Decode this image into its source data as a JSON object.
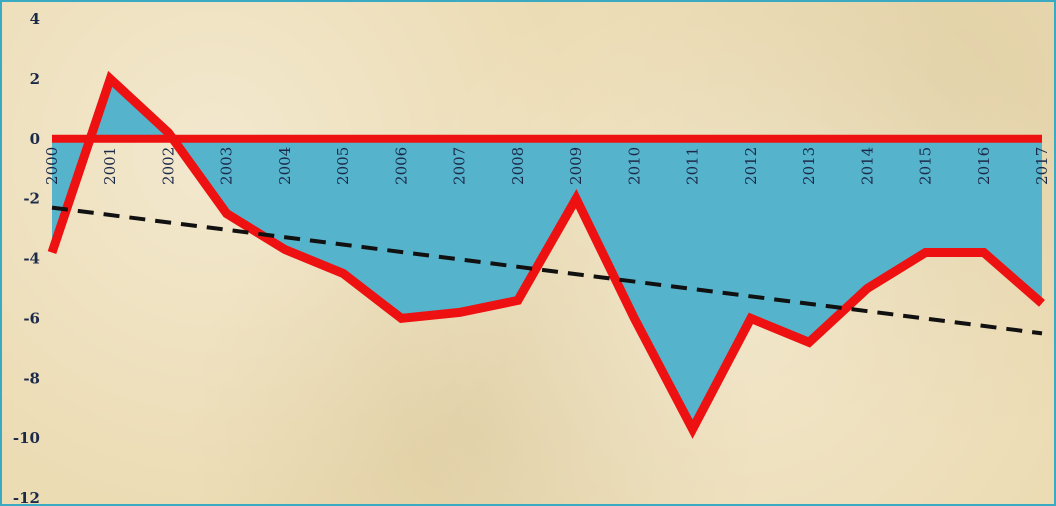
{
  "chart_data": {
    "type": "area",
    "x": [
      "2000",
      "2001",
      "2002",
      "2003",
      "2004",
      "2005",
      "2006",
      "2007",
      "2008",
      "2009",
      "2010",
      "2011",
      "2012",
      "2013",
      "2014",
      "2015",
      "2016",
      "2017"
    ],
    "series": [
      {
        "values": [
          -3.8,
          2.0,
          0.2,
          -2.5,
          -3.7,
          -4.5,
          -6.0,
          -5.8,
          -5.4,
          -2.0,
          -6.0,
          -9.7,
          -6.0,
          -6.8,
          -5.0,
          -3.8,
          -3.8,
          -5.5
        ]
      }
    ],
    "trend": {
      "start": -2.3,
      "end": -6.5
    },
    "ylim": [
      -12,
      4
    ],
    "yticks": [
      4,
      2,
      0,
      -2,
      -4,
      -6,
      -8,
      -10,
      -12
    ],
    "colors": {
      "fill": "#55b3cc",
      "line": "#ee1111",
      "trend": "#111111",
      "background": "#ecdcb4",
      "border": "#3aa9c2"
    },
    "grid": false,
    "legend": "none"
  }
}
